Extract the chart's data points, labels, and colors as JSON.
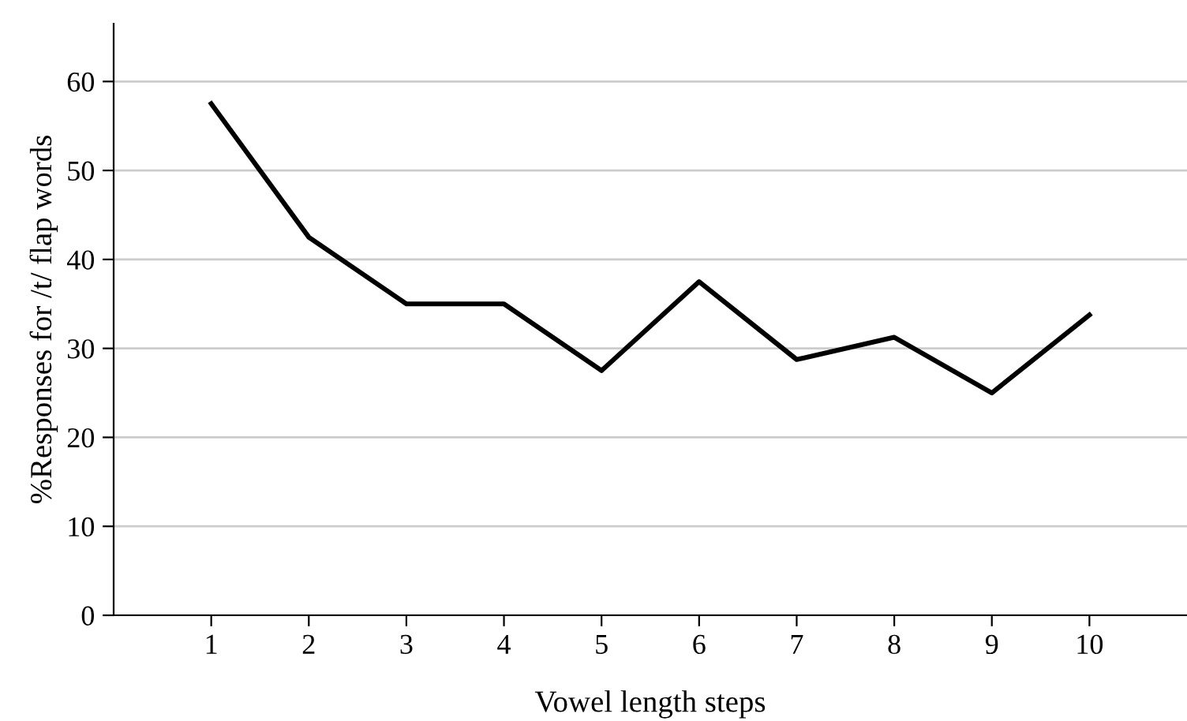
{
  "chart_data": {
    "type": "line",
    "xlabel": "Vowel length steps",
    "ylabel": "%Responses for /t/ flap words",
    "x": [
      1,
      2,
      3,
      4,
      5,
      6,
      7,
      8,
      9,
      10
    ],
    "series": [
      {
        "color": "#000000",
        "values": [
          57.5,
          42.5,
          35,
          35,
          27.5,
          37.5,
          28.75,
          31.25,
          25,
          33.75
        ]
      }
    ],
    "xlim": [
      0,
      11
    ],
    "xticks": [
      1,
      2,
      3,
      4,
      5,
      6,
      7,
      8,
      9,
      10
    ],
    "ylim": [
      0,
      66.5
    ],
    "yticks": [
      0,
      10,
      20,
      30,
      40,
      50,
      60
    ],
    "grid": "y",
    "marker": "none",
    "line_style": "solid",
    "legend": false
  }
}
